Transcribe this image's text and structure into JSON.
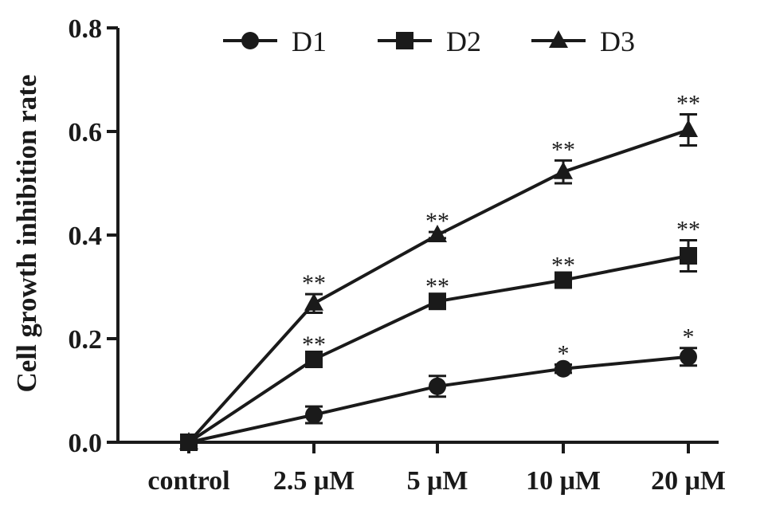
{
  "chart_data": {
    "type": "line",
    "title": "",
    "xlabel": "",
    "ylabel": "Cell growth inhibition rate",
    "categories": [
      "control",
      "2.5 μM",
      "5 μM",
      "10 μM",
      "20 μM"
    ],
    "ylim": [
      0,
      0.8
    ],
    "yticks": [
      "0.0",
      "0.2",
      "0.4",
      "0.6",
      "0.8"
    ],
    "grid": false,
    "legend_position": "top",
    "series": [
      {
        "name": "D1",
        "marker": "circle",
        "values": [
          0.0,
          0.053,
          0.108,
          0.142,
          0.165
        ],
        "errors": [
          0.0,
          0.016,
          0.02,
          0.008,
          0.017
        ],
        "annotations": [
          "",
          "",
          "",
          "*",
          "*"
        ]
      },
      {
        "name": "D2",
        "marker": "square",
        "values": [
          0.0,
          0.16,
          0.272,
          0.313,
          0.36
        ],
        "errors": [
          0.0,
          0.008,
          0.008,
          0.008,
          0.03
        ],
        "annotations": [
          "",
          "**",
          "**",
          "**",
          "**"
        ]
      },
      {
        "name": "D3",
        "marker": "triangle",
        "values": [
          0.0,
          0.268,
          0.4,
          0.522,
          0.603
        ],
        "errors": [
          0.0,
          0.018,
          0.006,
          0.022,
          0.03
        ],
        "annotations": [
          "",
          "**",
          "**",
          "**",
          "**"
        ]
      }
    ],
    "colors": {
      "line": "#1a1a1a"
    }
  }
}
